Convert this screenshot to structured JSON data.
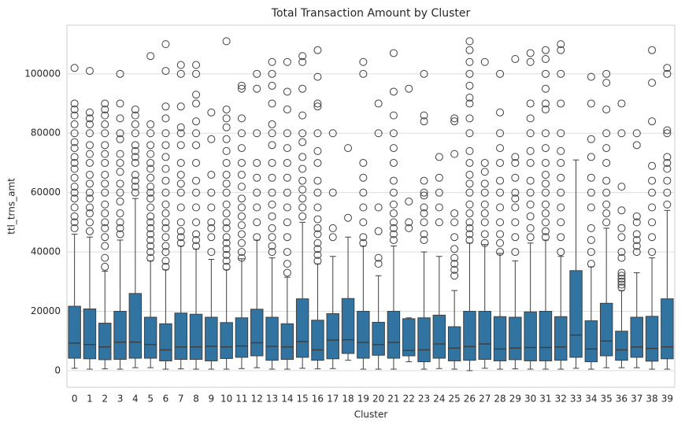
{
  "chart_data": {
    "type": "box",
    "title": "Total Transaction Amount by Cluster",
    "x_label": "Cluster",
    "y_label": "ttl_trns_amt",
    "categories": [
      "0",
      "1",
      "2",
      "3",
      "4",
      "5",
      "6",
      "7",
      "8",
      "9",
      "10",
      "11",
      "12",
      "13",
      "14",
      "15",
      "16",
      "17",
      "18",
      "19",
      "20",
      "21",
      "22",
      "23",
      "24",
      "25",
      "26",
      "27",
      "28",
      "29",
      "30",
      "31",
      "32",
      "33",
      "34",
      "35",
      "36",
      "37",
      "38",
      "39"
    ],
    "color": "#3274a1",
    "grid": true,
    "ylim": [
      -5600,
      116400
    ],
    "yticks": [
      0,
      20000,
      40000,
      60000,
      80000,
      100000
    ],
    "boxes": [
      {
        "whislo": 800,
        "q1": 4200,
        "med": 9300,
        "q3": 21700,
        "whishi": 46000,
        "fliers": [
          48000,
          50000,
          52000,
          55000,
          58000,
          60000,
          62000,
          65000,
          68000,
          70000,
          72000,
          75000,
          77000,
          80000,
          83000,
          86000,
          88000,
          90000,
          102000
        ]
      },
      {
        "whislo": 500,
        "q1": 4000,
        "med": 8800,
        "q3": 20800,
        "whishi": 45000,
        "fliers": [
          47000,
          50000,
          53000,
          55000,
          58000,
          60000,
          63000,
          66000,
          70000,
          73000,
          76000,
          80000,
          83000,
          85000,
          87000,
          101000
        ]
      },
      {
        "whislo": 600,
        "q1": 3700,
        "med": 8000,
        "q3": 16000,
        "whishi": 33500,
        "fliers": [
          35000,
          38000,
          42000,
          45000,
          48000,
          50000,
          53000,
          56000,
          60000,
          63000,
          66000,
          70000,
          73000,
          76000,
          80000,
          83000,
          86000,
          88000,
          90000
        ]
      },
      {
        "whislo": 500,
        "q1": 3800,
        "med": 9600,
        "q3": 20000,
        "whishi": 44000,
        "fliers": [
          46000,
          48000,
          50000,
          53000,
          57000,
          60000,
          63000,
          67000,
          70000,
          73000,
          78000,
          80000,
          85000,
          90000,
          100000
        ]
      },
      {
        "whislo": 1000,
        "q1": 4200,
        "med": 9600,
        "q3": 26000,
        "whishi": 58000,
        "fliers": [
          60000,
          62000,
          64000,
          66000,
          70000,
          72000,
          74000,
          76000,
          80000,
          83000,
          86000,
          88000
        ]
      },
      {
        "whislo": 1000,
        "q1": 4200,
        "med": 8800,
        "q3": 18000,
        "whishi": 37000,
        "fliers": [
          38000,
          40000,
          42000,
          44000,
          46000,
          48000,
          50000,
          52000,
          55000,
          58000,
          60000,
          62000,
          65000,
          68000,
          70000,
          73000,
          76000,
          80000,
          83000,
          106000
        ]
      },
      {
        "whislo": 500,
        "q1": 3300,
        "med": 7000,
        "q3": 15800,
        "whishi": 34000,
        "fliers": [
          35000,
          37000,
          40000,
          42000,
          45000,
          48000,
          50000,
          53000,
          56000,
          60000,
          64000,
          68000,
          72000,
          76000,
          80000,
          85000,
          89000,
          101000,
          110000
        ]
      },
      {
        "whislo": 600,
        "q1": 3800,
        "med": 8000,
        "q3": 19400,
        "whishi": 42000,
        "fliers": [
          43000,
          45000,
          47000,
          50000,
          55000,
          60000,
          63000,
          66000,
          70000,
          76000,
          80000,
          82000,
          89000,
          100000,
          103000
        ]
      },
      {
        "whislo": 500,
        "q1": 3800,
        "med": 8000,
        "q3": 19000,
        "whishi": 41000,
        "fliers": [
          42000,
          44000,
          46000,
          50000,
          55000,
          60000,
          64000,
          70000,
          76000,
          80000,
          84000,
          90000,
          93000,
          100000,
          103000
        ]
      },
      {
        "whislo": 500,
        "q1": 3300,
        "med": 8200,
        "q3": 18000,
        "whishi": 37500,
        "fliers": [
          40000,
          45000,
          48000,
          50000,
          55000,
          60000,
          66000,
          78000,
          87000
        ]
      },
      {
        "whislo": 500,
        "q1": 4100,
        "med": 8000,
        "q3": 16200,
        "whishi": 34000,
        "fliers": [
          35000,
          37000,
          39000,
          41000,
          43000,
          45000,
          48000,
          50000,
          53000,
          56000,
          60000,
          63000,
          66000,
          70000,
          74000,
          78000,
          82000,
          85000,
          88000,
          111000
        ]
      },
      {
        "whislo": 700,
        "q1": 4500,
        "med": 8300,
        "q3": 17800,
        "whishi": 37700,
        "fliers": [
          38000,
          40000,
          43000,
          46000,
          49000,
          52000,
          55000,
          58000,
          62000,
          66000,
          70000,
          75000,
          80000,
          85000,
          95000,
          96000
        ]
      },
      {
        "whislo": 1000,
        "q1": 5000,
        "med": 9400,
        "q3": 20700,
        "whishi": 44000,
        "fliers": [
          45000,
          50000,
          55000,
          60000,
          65000,
          70000,
          80000,
          95000,
          100000
        ]
      },
      {
        "whislo": 500,
        "q1": 3500,
        "med": 8200,
        "q3": 18000,
        "whishi": 38000,
        "fliers": [
          40000,
          42000,
          45000,
          48000,
          52000,
          56000,
          60000,
          65000,
          70000,
          76000,
          80000,
          83000,
          90000,
          96000,
          100000,
          104000
        ]
      },
      {
        "whislo": 500,
        "q1": 3800,
        "med": 8000,
        "q3": 15800,
        "whishi": 31500,
        "fliers": [
          33000,
          36000,
          40000,
          45000,
          50000,
          55000,
          60000,
          65000,
          70000,
          75000,
          80000,
          88000,
          94000,
          104000
        ]
      },
      {
        "whislo": 800,
        "q1": 4500,
        "med": 9800,
        "q3": 24200,
        "whishi": 50000,
        "fliers": [
          52000,
          55000,
          58000,
          61000,
          64000,
          68000,
          72000,
          77000,
          80000,
          86000,
          95000,
          104000,
          106000
        ]
      },
      {
        "whislo": 600,
        "q1": 3500,
        "med": 7000,
        "q3": 17000,
        "whishi": 36000,
        "fliers": [
          37000,
          39000,
          41000,
          43000,
          46000,
          48000,
          51000,
          55000,
          60000,
          64000,
          70000,
          74000,
          80000,
          89000,
          90000,
          99000,
          108000
        ]
      },
      {
        "whislo": 700,
        "q1": 4000,
        "med": 10300,
        "q3": 19200,
        "whishi": 38500,
        "fliers": [
          45000,
          48000,
          60000,
          80000
        ]
      },
      {
        "whislo": 3500,
        "q1": 5800,
        "med": 10400,
        "q3": 24300,
        "whishi": 45000,
        "fliers": [
          51500,
          75000
        ]
      },
      {
        "whislo": 500,
        "q1": 4200,
        "med": 9500,
        "q3": 20000,
        "whishi": 42000,
        "fliers": [
          43000,
          45000,
          50000,
          55000,
          60000,
          65000,
          70000,
          100000,
          104000
        ]
      },
      {
        "whislo": 500,
        "q1": 5200,
        "med": 8800,
        "q3": 16300,
        "whishi": 32000,
        "fliers": [
          36000,
          38000,
          47000,
          55000,
          80000,
          90000
        ]
      },
      {
        "whislo": 500,
        "q1": 4200,
        "med": 9500,
        "q3": 20000,
        "whishi": 42000,
        "fliers": [
          44000,
          46000,
          48000,
          50000,
          53000,
          56000,
          60000,
          64000,
          70000,
          75000,
          80000,
          86000,
          94000,
          107000
        ]
      },
      {
        "whislo": 3000,
        "q1": 5000,
        "med": 6800,
        "q3": 17500,
        "whishi": 17800,
        "fliers": [
          48000,
          50000,
          57000,
          95000
        ]
      },
      {
        "whislo": 500,
        "q1": 3000,
        "med": 7000,
        "q3": 17800,
        "whishi": 40000,
        "fliers": [
          44000,
          46000,
          50000,
          53000,
          55000,
          59000,
          60000,
          64000,
          84000,
          86000,
          100000
        ]
      },
      {
        "whislo": 700,
        "q1": 4200,
        "med": 9000,
        "q3": 18700,
        "whishi": 38500,
        "fliers": [
          50000,
          55000,
          60000,
          65000,
          72000
        ]
      },
      {
        "whislo": 500,
        "q1": 3300,
        "med": 7600,
        "q3": 14800,
        "whishi": 27000,
        "fliers": [
          32000,
          34000,
          36000,
          38000,
          41000,
          45000,
          50000,
          53000,
          73000,
          84000,
          85000
        ]
      },
      {
        "whislo": 0,
        "q1": 3500,
        "med": 8100,
        "q3": 20000,
        "whishi": 43000,
        "fliers": [
          44000,
          46000,
          48000,
          50000,
          53000,
          56000,
          60000,
          63000,
          66000,
          70000,
          74000,
          80000,
          85000,
          90000,
          92000,
          96000,
          100000,
          104000,
          108000,
          111000
        ]
      },
      {
        "whislo": 800,
        "q1": 3800,
        "med": 9000,
        "q3": 20000,
        "whishi": 42500,
        "fliers": [
          43000,
          46000,
          50000,
          53000,
          56000,
          60000,
          63000,
          67000,
          70000,
          104000
        ]
      },
      {
        "whislo": 500,
        "q1": 3300,
        "med": 7300,
        "q3": 18200,
        "whishi": 39500,
        "fliers": [
          40000,
          43000,
          46000,
          50000,
          55000,
          60000,
          64000,
          70000,
          75000,
          80000,
          87000,
          100000
        ]
      },
      {
        "whislo": 600,
        "q1": 3700,
        "med": 7600,
        "q3": 18000,
        "whishi": 37000,
        "fliers": [
          40000,
          45000,
          50000,
          55000,
          58000,
          60000,
          65000,
          70000,
          72000,
          105000
        ]
      },
      {
        "whislo": 500,
        "q1": 3300,
        "med": 7800,
        "q3": 19800,
        "whishi": 43000,
        "fliers": [
          45000,
          48000,
          52000,
          56000,
          60000,
          64000,
          70000,
          74000,
          80000,
          85000,
          90000,
          104000,
          107000
        ]
      },
      {
        "whislo": 500,
        "q1": 3300,
        "med": 7800,
        "q3": 20000,
        "whishi": 44000,
        "fliers": [
          45000,
          47000,
          50000,
          53000,
          56000,
          60000,
          63000,
          66000,
          70000,
          75000,
          80000,
          88000,
          90000,
          95000,
          100000,
          105000,
          108000
        ]
      },
      {
        "whislo": 500,
        "q1": 3500,
        "med": 8000,
        "q3": 18200,
        "whishi": 38500,
        "fliers": [
          40000,
          45000,
          50000,
          55000,
          60000,
          65000,
          70000,
          74000,
          80000,
          90000,
          100000,
          108000,
          110000
        ]
      },
      {
        "whislo": 800,
        "q1": 4500,
        "med": 12000,
        "q3": 33700,
        "whishi": 71000,
        "fliers": []
      },
      {
        "whislo": 500,
        "q1": 3000,
        "med": 7300,
        "q3": 16800,
        "whishi": 35000,
        "fliers": [
          36000,
          40000,
          44000,
          48000,
          55000,
          60000,
          65000,
          72000,
          78000,
          90000,
          99000
        ]
      },
      {
        "whislo": 1000,
        "q1": 5000,
        "med": 10000,
        "q3": 22700,
        "whishi": 48000,
        "fliers": [
          50000,
          53000,
          56000,
          60000,
          64000,
          70000,
          75000,
          80000,
          88000,
          97000,
          100000
        ]
      },
      {
        "whislo": 1000,
        "q1": 3500,
        "med": 7000,
        "q3": 13300,
        "whishi": 27000,
        "fliers": [
          28000,
          29000,
          30000,
          31000,
          32000,
          33000,
          38000,
          40000,
          45000,
          48000,
          54000,
          62000,
          80000,
          90000
        ]
      },
      {
        "whislo": 1000,
        "q1": 4500,
        "med": 8000,
        "q3": 18000,
        "whishi": 33000,
        "fliers": [
          40000,
          42000,
          44000,
          46000,
          50000,
          52000,
          76000,
          80000
        ]
      },
      {
        "whislo": 500,
        "q1": 3200,
        "med": 7500,
        "q3": 18300,
        "whishi": 38000,
        "fliers": [
          40000,
          45000,
          50000,
          55000,
          60000,
          64000,
          69000,
          84000,
          97000,
          108000
        ]
      },
      {
        "whislo": 500,
        "q1": 4000,
        "med": 8000,
        "q3": 24200,
        "whishi": 54000,
        "fliers": [
          56000,
          60000,
          64000,
          68000,
          70000,
          72000,
          80000,
          81000,
          100000,
          102000
        ]
      }
    ]
  }
}
